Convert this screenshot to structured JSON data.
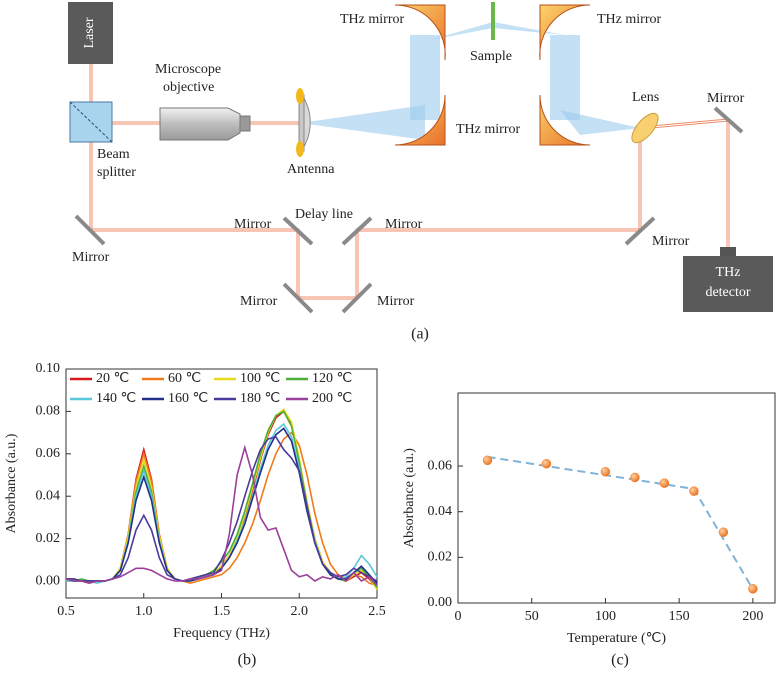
{
  "diagram": {
    "labels": [
      "Laser",
      "Microscope",
      "objective",
      "Beam",
      "splitter",
      "Antenna",
      "THz mirror",
      "Sample",
      "THz mirror",
      "THz mirror",
      "Lens",
      "Mirror",
      "Mirror",
      "Delay line",
      "Mirror",
      "Mirror",
      "Mirror",
      "Mirror",
      "Mirror",
      "THz",
      "detector"
    ],
    "caption": "(a)"
  },
  "chart_data": [
    {
      "type": "line",
      "caption": "(b)",
      "x_label": "Frequency (THz)",
      "y_label": "Absorbance (a.u.)",
      "xlim": [
        0.5,
        2.5
      ],
      "ylim": [
        -0.008,
        0.1
      ],
      "xticks": [
        0.5,
        {
          "value": 1,
          "label": "1.0"
        },
        1.5,
        {
          "value": 2,
          "label": "2.0"
        },
        2.5
      ],
      "yticks": [
        {
          "value": 0,
          "label": "0.00"
        },
        0.02,
        0.04,
        0.06,
        0.08,
        {
          "value": 0.1,
          "label": "0.10"
        }
      ],
      "legend": "upper left",
      "x": [
        0.5,
        0.55,
        0.6,
        0.65,
        0.7,
        0.75,
        0.8,
        0.85,
        0.9,
        0.95,
        1,
        1.05,
        1.1,
        1.15,
        1.2,
        1.25,
        1.3,
        1.35,
        1.4,
        1.45,
        1.5,
        1.55,
        1.6,
        1.65,
        1.7,
        1.75,
        1.8,
        1.85,
        1.9,
        1.95,
        2,
        2.05,
        2.1,
        2.15,
        2.2,
        2.25,
        2.3,
        2.35,
        2.4,
        2.45,
        2.5
      ],
      "series": [
        {
          "name": "20 ℃",
          "color": "#d7191c",
          "values": [
            0.001,
            0.001,
            0,
            0,
            0,
            0,
            0.001,
            0.006,
            0.022,
            0.048,
            0.062,
            0.048,
            0.022,
            0.006,
            0.001,
            0,
            0.001,
            0.001,
            0.002,
            0.004,
            0.007,
            0.012,
            0.02,
            0.03,
            0.043,
            0.057,
            0.069,
            0.077,
            0.08,
            0.074,
            0.057,
            0.037,
            0.02,
            0.009,
            0.004,
            0.001,
            0,
            0.002,
            0.004,
            0.001,
            -0.003
          ]
        },
        {
          "name": "60 ℃",
          "color": "#f07a1a",
          "values": [
            0,
            0.001,
            0,
            -0.001,
            0,
            0,
            0.001,
            0.006,
            0.022,
            0.047,
            0.06,
            0.047,
            0.022,
            0.006,
            0.001,
            0,
            -0.001,
            0,
            0.001,
            0.002,
            0.003,
            0.006,
            0.011,
            0.018,
            0.027,
            0.038,
            0.05,
            0.06,
            0.067,
            0.07,
            0.064,
            0.05,
            0.032,
            0.018,
            0.008,
            0.003,
            0.001,
            0.003,
            0.002,
            -0.001,
            -0.002
          ]
        },
        {
          "name": "100 ℃",
          "color": "#e6dc1e",
          "values": [
            0.001,
            0,
            0,
            0,
            0,
            0,
            0.001,
            0.006,
            0.021,
            0.044,
            0.057,
            0.044,
            0.021,
            0.006,
            0.001,
            0,
            0,
            0.001,
            0.002,
            0.004,
            0.007,
            0.012,
            0.02,
            0.031,
            0.044,
            0.058,
            0.07,
            0.078,
            0.081,
            0.075,
            0.058,
            0.037,
            0.02,
            0.009,
            0.004,
            0.001,
            0,
            0.003,
            0.005,
            0.002,
            -0.004
          ]
        },
        {
          "name": "120 ℃",
          "color": "#4caf3a",
          "values": [
            0,
            0,
            0.001,
            0,
            0,
            0,
            0.001,
            0.005,
            0.019,
            0.042,
            0.054,
            0.042,
            0.019,
            0.005,
            0.001,
            0,
            0.001,
            0.002,
            0.003,
            0.005,
            0.009,
            0.014,
            0.022,
            0.033,
            0.046,
            0.06,
            0.071,
            0.078,
            0.08,
            0.073,
            0.056,
            0.036,
            0.019,
            0.008,
            0.003,
            0.001,
            0,
            0.004,
            0.006,
            0.002,
            -0.003
          ]
        },
        {
          "name": "140 ℃",
          "color": "#5bc8d8",
          "values": [
            0,
            0,
            0,
            0,
            -0.001,
            0,
            0.001,
            0.005,
            0.019,
            0.04,
            0.052,
            0.04,
            0.019,
            0.005,
            0.001,
            0,
            0,
            0.001,
            0.002,
            0.003,
            0.006,
            0.011,
            0.019,
            0.028,
            0.04,
            0.053,
            0.064,
            0.071,
            0.074,
            0.068,
            0.053,
            0.034,
            0.019,
            0.008,
            0.003,
            0.001,
            0.002,
            0.006,
            0.012,
            0.008,
            0.002
          ]
        },
        {
          "name": "160 ℃",
          "color": "#23308a",
          "values": [
            0.001,
            0,
            0,
            0,
            0,
            0,
            0.001,
            0.005,
            0.018,
            0.038,
            0.049,
            0.038,
            0.018,
            0.005,
            0.001,
            0,
            0,
            0.001,
            0.002,
            0.003,
            0.006,
            0.011,
            0.018,
            0.027,
            0.039,
            0.051,
            0.062,
            0.069,
            0.072,
            0.066,
            0.051,
            0.033,
            0.018,
            0.008,
            0.003,
            0.001,
            0.001,
            0.004,
            0.007,
            0.003,
            -0.001
          ]
        },
        {
          "name": "180 ℃",
          "color": "#4a3a9c",
          "values": [
            0.001,
            0.001,
            0,
            0,
            0,
            0,
            0.001,
            0.003,
            0.011,
            0.024,
            0.031,
            0.024,
            0.011,
            0.003,
            0.001,
            0,
            0.001,
            0.002,
            0.003,
            0.004,
            0.01,
            0.018,
            0.028,
            0.04,
            0.052,
            0.062,
            0.067,
            0.068,
            0.062,
            0.058,
            0.052,
            0.035,
            0.018,
            0.008,
            0.004,
            0.002,
            0.003,
            0.006,
            0.004,
            0.002,
            0
          ]
        },
        {
          "name": "200 ℃",
          "color": "#9b3f9a",
          "values": [
            0.001,
            0,
            0,
            -0.001,
            0,
            0,
            0.001,
            0.002,
            0.004,
            0.006,
            0.006,
            0.005,
            0.003,
            0.001,
            0,
            0,
            0.001,
            0.001,
            0.002,
            0.003,
            0.005,
            0.022,
            0.05,
            0.063,
            0.05,
            0.03,
            0.024,
            0.025,
            0.015,
            0.005,
            0.002,
            0.003,
            0,
            0.002,
            0.001,
            0.003,
            0,
            0.004,
            0,
            0.002,
            -0.002
          ]
        }
      ]
    },
    {
      "type": "scatter",
      "caption": "(c)",
      "x_label": "Temperature (℃)",
      "y_label": "Absorbance (a.u.)",
      "xlim": [
        0,
        215
      ],
      "ylim": [
        0,
        0.092
      ],
      "xticks": [
        0,
        50,
        100,
        150,
        200
      ],
      "yticks": [
        {
          "value": 0,
          "label": "0.00"
        },
        0.02,
        0.04,
        0.06
      ],
      "x": [
        20,
        60,
        100,
        120,
        140,
        160,
        180,
        200
      ],
      "values": [
        0.0625,
        0.061,
        0.0575,
        0.055,
        0.0525,
        0.049,
        0.031,
        0.0062
      ],
      "color": "#f07f2a",
      "fit_line": {
        "x": [
          20,
          160,
          200
        ],
        "values": [
          0.064,
          0.05,
          0.006
        ],
        "color": "#7fb3d8"
      }
    }
  ]
}
